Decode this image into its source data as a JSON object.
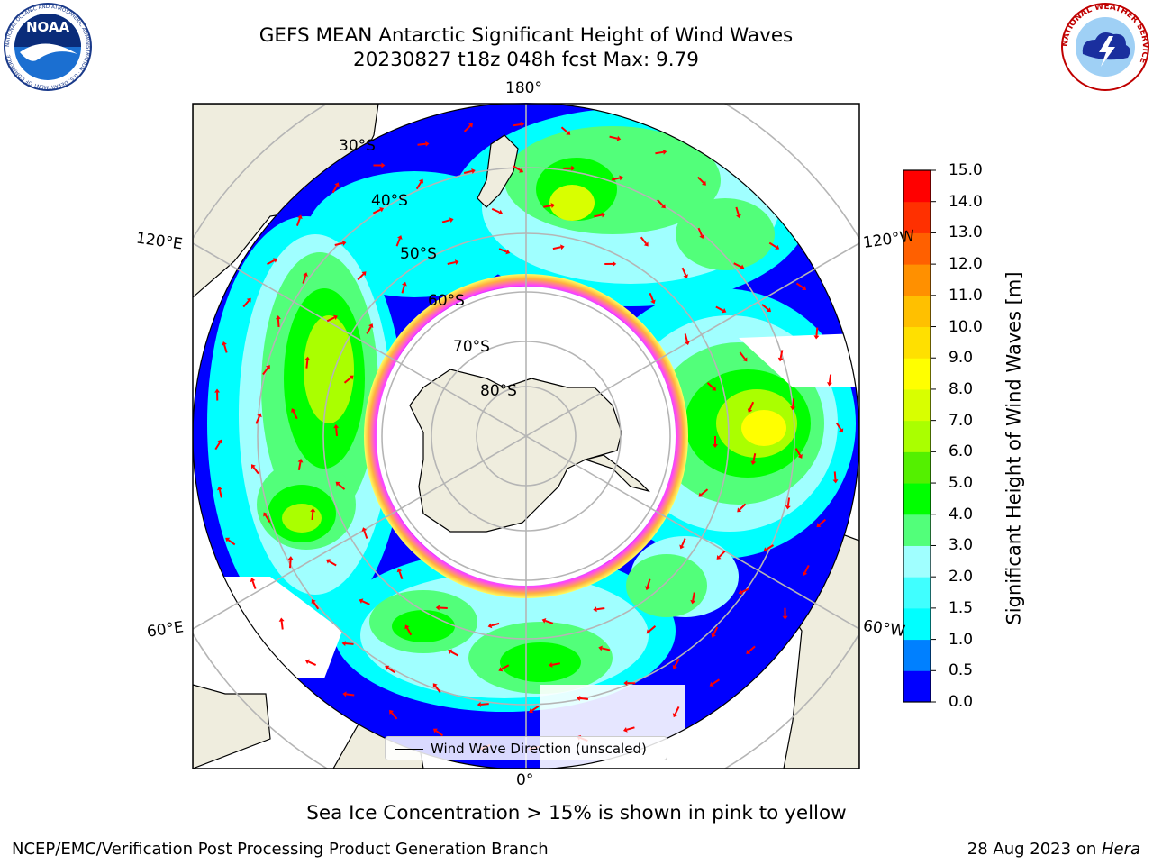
{
  "header": {
    "title_line1": "GEFS MEAN Antarctic Significant Height of Wind Waves",
    "title_line2": "20230827 t18z 048h fcst   Max: 9.79"
  },
  "logos": {
    "noaa_text": "NOAA",
    "noaa_ring_text": "NATIONAL OCEANIC AND ATMOSPHERIC ADMINISTRATION · U.S. DEPARTMENT OF COMMERCE",
    "nws_ring_text": "NATIONAL WEATHER SERVICE"
  },
  "map": {
    "projection": "south-polar-stereographic",
    "longitude_labels": [
      "180°",
      "120°E",
      "120°W",
      "60°E",
      "60°W",
      "0°"
    ],
    "latitude_labels": [
      "30°S",
      "40°S",
      "50°S",
      "60°S",
      "70°S",
      "80°S"
    ],
    "land_color": "#efedde",
    "ocean_no_data_color": "#ffffff",
    "arrow_color": "#ff0000",
    "grid_color": "#b5b5b5"
  },
  "colorbar": {
    "label": "Significant Height of Wind Waves [m]",
    "ticks": [
      "15.0",
      "14.0",
      "13.0",
      "12.0",
      "11.0",
      "10.0",
      "9.0",
      "8.0",
      "7.0",
      "6.0",
      "5.0",
      "4.0",
      "3.0",
      "2.0",
      "1.5",
      "1.0",
      "0.5",
      "0.0"
    ],
    "boundaries": [
      0.0,
      0.5,
      1.0,
      1.5,
      2.0,
      3.0,
      4.0,
      5.0,
      6.0,
      7.0,
      8.0,
      9.0,
      10.0,
      11.0,
      12.0,
      13.0,
      14.0,
      15.0
    ],
    "colors": [
      "#0000ff",
      "#0080ff",
      "#00ffff",
      "#40ffff",
      "#a0ffff",
      "#52ff7a",
      "#00ff00",
      "#54f000",
      "#aaff00",
      "#d8ff00",
      "#ffff00",
      "#ffe000",
      "#ffc000",
      "#ff9000",
      "#ff6000",
      "#ff3000",
      "#ff0000"
    ]
  },
  "legend": {
    "label": "Wind Wave Direction (unscaled)"
  },
  "note": "Sea Ice Concentration > 15% is shown in pink to yellow",
  "footer": {
    "left": "NCEP/EMC/Verification Post Processing Product Generation Branch",
    "right_prefix": "28 Aug 2023 on ",
    "right_machine": "Hera"
  }
}
